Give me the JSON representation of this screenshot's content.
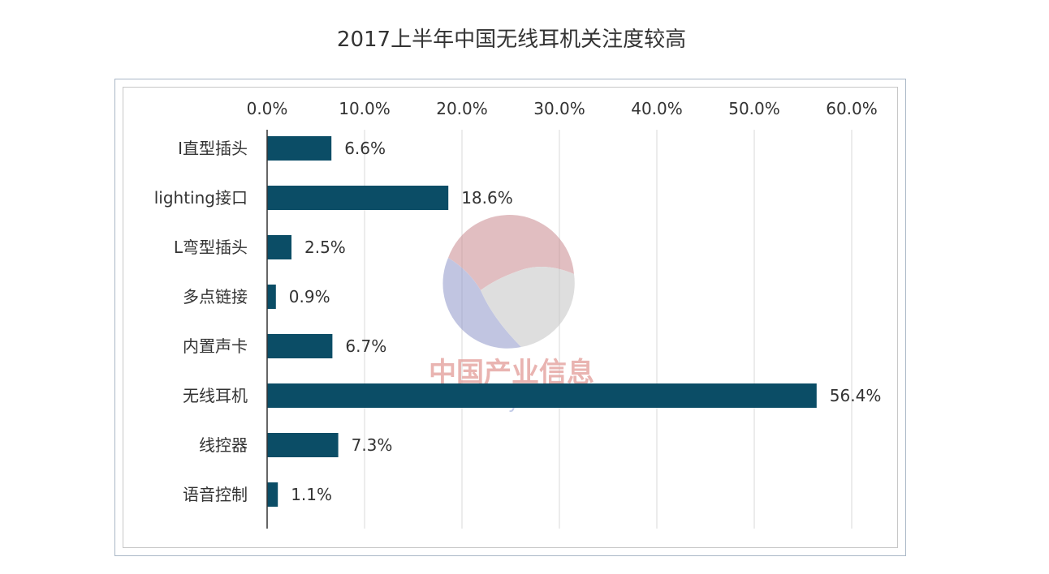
{
  "page": {
    "title": "2017上半年中国无线耳机关注度较高"
  },
  "watermark": {
    "text_cn": "中国产业信息",
    "text_url": "www.chyxx.com"
  },
  "chart_data": {
    "type": "bar",
    "orientation": "horizontal",
    "title": "2017上半年中国无线耳机关注度较高",
    "xlabel": "",
    "ylabel": "",
    "categories": [
      "I直型插头",
      "lighting接口",
      "L弯型插头",
      "多点链接",
      "内置声卡",
      "无线耳机",
      "线控器",
      "语音控制"
    ],
    "values": [
      6.6,
      18.6,
      2.5,
      0.9,
      6.7,
      56.4,
      7.3,
      1.1
    ],
    "data_labels": [
      "6.6%",
      "18.6%",
      "2.5%",
      "0.9%",
      "6.7%",
      "56.4%",
      "7.3%",
      "1.1%"
    ],
    "xlim": [
      0,
      60
    ],
    "x_ticks": [
      0,
      10,
      20,
      30,
      40,
      50,
      60
    ],
    "x_tick_labels": [
      "0.0%",
      "10.0%",
      "20.0%",
      "30.0%",
      "40.0%",
      "50.0%",
      "60.0%"
    ],
    "x_axis_position": "top",
    "grid": true,
    "legend": "none",
    "bar_color": "#0b4d66",
    "grid_color": "#d9d9d9"
  }
}
